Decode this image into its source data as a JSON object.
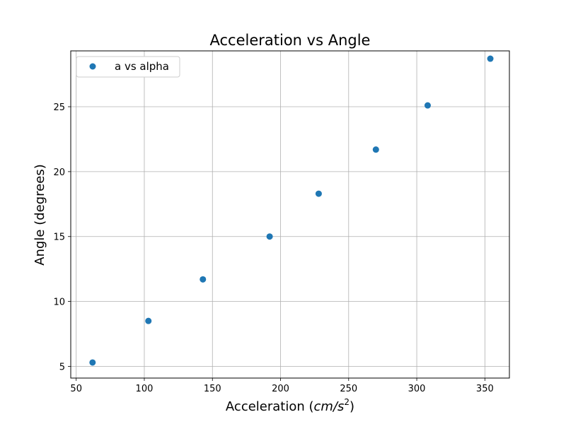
{
  "chart_data": {
    "type": "scatter",
    "title": "Acceleration vs Angle",
    "xlabel": "Acceleration (cm/s²)",
    "xlabel_parts": {
      "prefix": "Acceleration (",
      "unit_base": "cm/s",
      "unit_exp": "2",
      "suffix": ")"
    },
    "ylabel": "Angle (degrees)",
    "xlim": [
      46,
      368
    ],
    "ylim": [
      4.1,
      29.3
    ],
    "xticks": [
      50,
      100,
      150,
      200,
      250,
      300,
      350
    ],
    "yticks": [
      5,
      10,
      15,
      20,
      25
    ],
    "grid": true,
    "legend_position": "top-left",
    "series": [
      {
        "name": "a vs alpha",
        "color": "#1f77b4",
        "points": [
          {
            "x": 62,
            "y": 5.3
          },
          {
            "x": 103,
            "y": 8.5
          },
          {
            "x": 143,
            "y": 11.7
          },
          {
            "x": 192,
            "y": 15.0
          },
          {
            "x": 228,
            "y": 18.3
          },
          {
            "x": 270,
            "y": 21.7
          },
          {
            "x": 308,
            "y": 25.1
          },
          {
            "x": 354,
            "y": 28.7
          }
        ]
      }
    ]
  }
}
